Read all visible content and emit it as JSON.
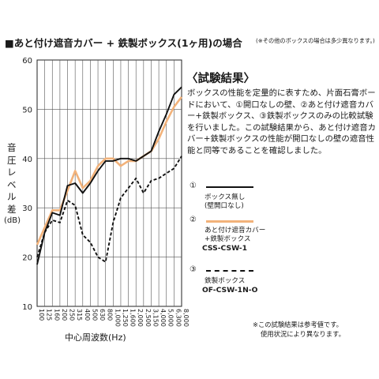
{
  "heading": {
    "title": "■あと付け遮音カバー + 鉄製ボックス(1ヶ用)の場合",
    "note": "(※その他のボックスの場合は多少異なります。)"
  },
  "chart_data": {
    "type": "line",
    "title": "",
    "ylabel": "音圧レベル差(dB)",
    "ylabel_chars": [
      "音",
      "圧",
      "レ",
      "ベ",
      "ル",
      "差",
      "(dB)"
    ],
    "xlabel": "中心周波数(Hz)",
    "categories": [
      "100",
      "125",
      "160",
      "200",
      "250",
      "315",
      "400",
      "500",
      "630",
      "800",
      "1,000",
      "1,250",
      "1,600",
      "2,000",
      "2,500",
      "3,150",
      "4,000",
      "5,000",
      "6,300",
      "8,000"
    ],
    "ylim": [
      10,
      60
    ],
    "yticks": [
      10,
      20,
      30,
      40,
      50,
      60
    ],
    "grid": true,
    "series": [
      {
        "name": "ボックス無し (壁開口なし)",
        "color": "#111111",
        "style": "solid",
        "values": [
          18.5,
          25,
          29,
          28.5,
          34.5,
          35,
          33,
          35,
          37.5,
          39.5,
          39.5,
          40,
          40,
          39.5,
          40.5,
          41.5,
          45.5,
          49,
          53,
          54.5
        ]
      },
      {
        "name": "あと付け遮音カバー +鉄製ボックス",
        "color": "#f2b27a",
        "style": "solid",
        "values": [
          22.5,
          26,
          29.5,
          29.5,
          33.5,
          37.5,
          34,
          35.5,
          38.5,
          40,
          40,
          38.5,
          39.5,
          39.5,
          40.5,
          41.5,
          44,
          47.5,
          50.5,
          52.5
        ]
      },
      {
        "name": "鉄製ボックス",
        "color": "#111111",
        "style": "dashed",
        "values": [
          20,
          25,
          27.5,
          27,
          31.5,
          30.5,
          24.5,
          23,
          20,
          19,
          27,
          32,
          34,
          36,
          33,
          35.5,
          36,
          37,
          38,
          40.5
        ]
      }
    ]
  },
  "results": {
    "title": "〈試験結果〉",
    "body": "ボックスの性能を定量的に表すため、片面石膏ボードにおいて、①開口なしの壁、②あと付け遮音カバー+鉄製ボックス、③鉄製ボックスのみの比較試験を行いました。この試験結果から、あと付け遮音カバー+鉄製ボックスの性能が開口なしの壁の遮音性能と同等であることを確認しました。"
  },
  "legend": [
    {
      "number": "①",
      "name": "ボックス無し",
      "name2": "(壁開口なし)",
      "model": ""
    },
    {
      "number": "②",
      "name": "あと付け遮音カバー",
      "name2": "+鉄製ボックス",
      "model": "CSS-CSW-1"
    },
    {
      "number": "③",
      "name": "鉄製ボックス",
      "name2": "",
      "model": "OF-CSW-1N-O"
    }
  ],
  "footnote": {
    "line1": "※この試験結果は参考値です。",
    "line2": "使用状況により異なります。"
  }
}
